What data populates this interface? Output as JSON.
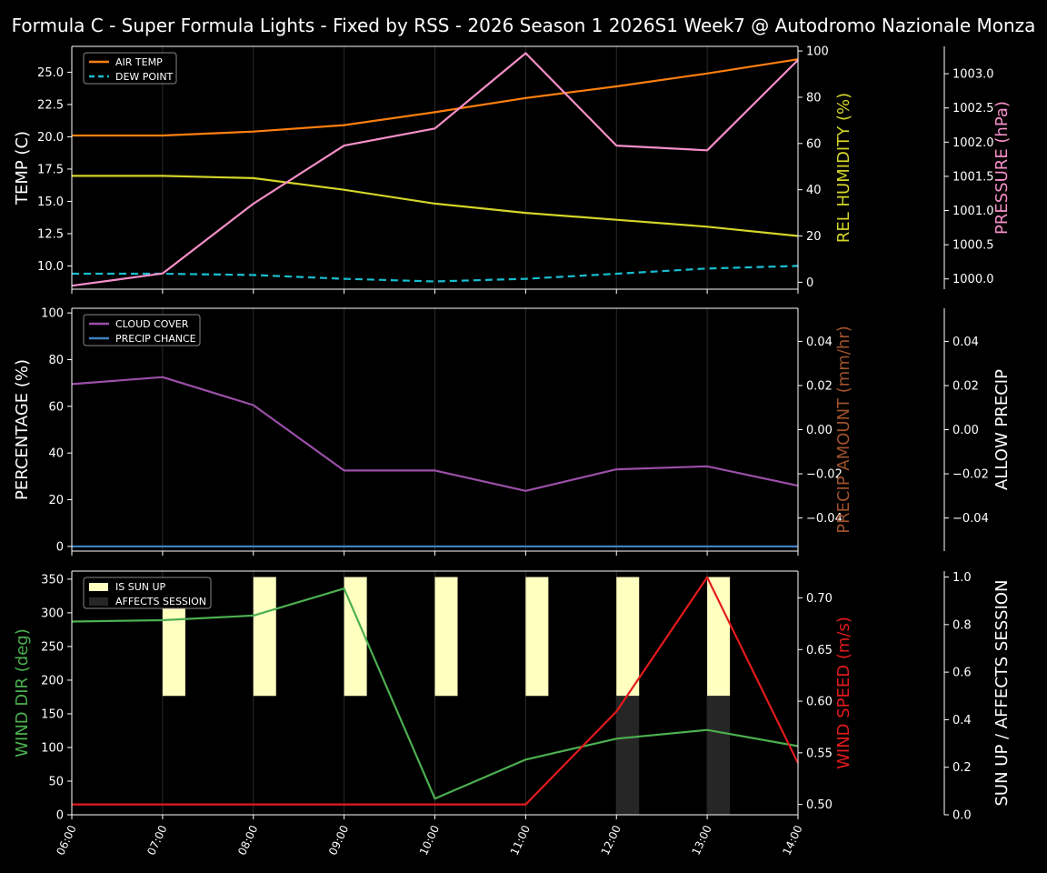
{
  "title": "Formula C - Super Formula Lights - Fixed by RSS - 2026 Season 1 2026S1 Week7 @ Autodromo Nazionale Monza",
  "x_ticks": [
    "06:00",
    "07:00",
    "08:00",
    "09:00",
    "10:00",
    "11:00",
    "12:00",
    "13:00",
    "14:00"
  ],
  "colors": {
    "background": "#000000",
    "axis": "#ffffff",
    "grid": "#2a2a2a",
    "air_temp": "#ff7f0e",
    "dew_point": "#17becf",
    "humidity": "#d4d42a",
    "pressure": "#f58fc8",
    "cloud_cover": "#9b4fa8",
    "precip_chance": "#3f7fbf",
    "precip_amount": "#a0522d",
    "wind_dir": "#4caf50",
    "wind_speed": "#e31a1c",
    "sun_up": "#ffffc0",
    "affects_session": "#262626"
  },
  "chart_data": [
    {
      "type": "line",
      "panel": "temperature",
      "x": [
        "06:00",
        "07:00",
        "08:00",
        "09:00",
        "10:00",
        "11:00",
        "12:00",
        "13:00",
        "14:00"
      ],
      "axes": {
        "left": {
          "label": "TEMP (C)",
          "ticks": [
            "10.0",
            "12.5",
            "15.0",
            "17.5",
            "20.0",
            "22.5",
            "25.0"
          ],
          "ylim": [
            8.2,
            27.0
          ]
        },
        "right1": {
          "label": "REL HUMIDITY (%)",
          "ticks": [
            "0",
            "20",
            "40",
            "60",
            "80",
            "100"
          ],
          "ylim": [
            -3,
            102
          ]
        },
        "right2": {
          "label": "PRESSURE (hPa)",
          "ticks": [
            "1000.0",
            "1000.5",
            "1001.0",
            "1001.5",
            "1002.0",
            "1002.5",
            "1003.0"
          ],
          "ylim": [
            999.85,
            1003.4
          ]
        }
      },
      "legend": {
        "position": "top-left",
        "entries": [
          "AIR TEMP",
          "DEW POINT"
        ]
      },
      "series": [
        {
          "name": "AIR TEMP",
          "axis": "left",
          "values": [
            20.1,
            20.1,
            20.4,
            20.9,
            21.9,
            23.0,
            23.9,
            24.9,
            26.0
          ]
        },
        {
          "name": "DEW POINT",
          "axis": "left",
          "values": [
            9.4,
            9.4,
            9.3,
            9.0,
            8.8,
            9.0,
            9.4,
            9.8,
            10.0
          ]
        },
        {
          "name": "REL HUMIDITY",
          "axis": "right1",
          "values": [
            46,
            46,
            45,
            40,
            34,
            30,
            27,
            24,
            20
          ]
        },
        {
          "name": "PRESSURE",
          "axis": "right2",
          "values": [
            999.9,
            1000.08,
            1001.1,
            1001.95,
            1002.2,
            1003.3,
            1001.95,
            1001.88,
            1003.2
          ]
        }
      ]
    },
    {
      "type": "line",
      "panel": "precipitation",
      "x": [
        "06:00",
        "07:00",
        "08:00",
        "09:00",
        "10:00",
        "11:00",
        "12:00",
        "13:00",
        "14:00"
      ],
      "axes": {
        "left": {
          "label": "PERCENTAGE (%)",
          "ticks": [
            "0",
            "20",
            "40",
            "60",
            "80",
            "100"
          ],
          "ylim": [
            -2,
            102
          ]
        },
        "right1": {
          "label": "PRECIP AMOUNT (mm/hr)",
          "ticks": [
            "−0.04",
            "−0.02",
            "0.00",
            "0.02",
            "0.04"
          ],
          "ylim": [
            -0.055,
            0.055
          ]
        },
        "right2": {
          "label": "ALLOW PRECIP",
          "ticks": [
            "−0.04",
            "−0.02",
            "0.00",
            "0.02",
            "0.04"
          ],
          "ylim": [
            -0.055,
            0.055
          ]
        }
      },
      "legend": {
        "position": "top-left",
        "entries": [
          "CLOUD COVER",
          "PRECIP CHANCE"
        ]
      },
      "series": [
        {
          "name": "CLOUD COVER",
          "axis": "left",
          "values": [
            69.5,
            72.5,
            60.5,
            32.5,
            32.5,
            23.8,
            33.0,
            34.3,
            26.0
          ]
        },
        {
          "name": "PRECIP CHANCE",
          "axis": "left",
          "values": [
            0,
            0,
            0,
            0,
            0,
            0,
            0,
            0,
            0
          ]
        }
      ]
    },
    {
      "type": "line",
      "panel": "wind",
      "x": [
        "06:00",
        "07:00",
        "08:00",
        "09:00",
        "10:00",
        "11:00",
        "12:00",
        "13:00",
        "14:00"
      ],
      "axes": {
        "left": {
          "label": "WIND DIR (deg)",
          "ticks": [
            "0",
            "50",
            "100",
            "150",
            "200",
            "250",
            "300",
            "350"
          ],
          "ylim": [
            0,
            362
          ]
        },
        "right1": {
          "label": "WIND SPEED (m/s)",
          "ticks": [
            "0.50",
            "0.55",
            "0.60",
            "0.65",
            "0.70"
          ],
          "ylim": [
            0.49,
            0.726
          ]
        },
        "right2": {
          "label": "SUN UP / AFFECTS SESSION",
          "ticks": [
            "0.0",
            "0.2",
            "0.4",
            "0.6",
            "0.8",
            "1.0"
          ],
          "ylim": [
            0,
            1.025
          ]
        }
      },
      "legend": {
        "position": "top-left",
        "entries": [
          "IS SUN UP",
          "AFFECTS SESSION"
        ]
      },
      "series": [
        {
          "name": "WIND DIR",
          "axis": "left",
          "values": [
            287,
            289,
            296,
            336,
            24,
            82,
            113,
            126,
            102
          ]
        },
        {
          "name": "WIND SPEED",
          "axis": "right1",
          "values": [
            0.5,
            0.5,
            0.5,
            0.5,
            0.5,
            0.5,
            0.59,
            0.72,
            0.54
          ]
        }
      ],
      "bars": [
        {
          "name": "IS SUN UP",
          "axis": "right2",
          "x": [
            "07:00",
            "08:00",
            "09:00",
            "10:00",
            "11:00",
            "12:00",
            "13:00"
          ],
          "values": [
            1,
            1,
            1,
            1,
            1,
            1,
            1
          ],
          "base": 0.5
        },
        {
          "name": "AFFECTS SESSION",
          "axis": "right2",
          "x": [
            "12:00",
            "13:00"
          ],
          "values": [
            0.5,
            0.5
          ],
          "base": 0
        }
      ]
    }
  ]
}
